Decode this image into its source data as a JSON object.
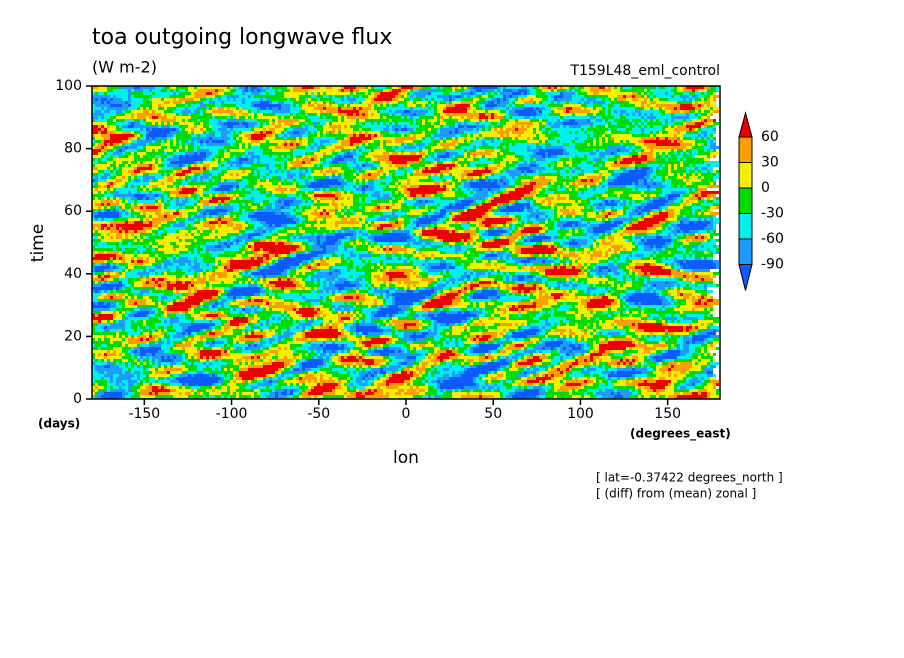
{
  "chart_data": {
    "type": "contour",
    "title": "toa outgoing longwave flux",
    "units": "(W m-2)",
    "experiment": "T159L48_eml_control",
    "xlabel": "lon",
    "ylabel": "time",
    "y_unit": "(days)",
    "x_unit": "(degrees_east)",
    "annotations": [
      "[ lat=-0.37422 degrees_north ]",
      "[ (diff) from (mean) zonal ]"
    ],
    "xlim": [
      -180,
      180
    ],
    "xticks": [
      -150,
      -100,
      -50,
      0,
      50,
      100,
      150
    ],
    "ylim": [
      0,
      100
    ],
    "yticks": [
      0,
      20,
      40,
      60,
      80,
      100
    ],
    "levels": [
      -90,
      -60,
      -30,
      0,
      30,
      60
    ],
    "colors": [
      "#0a5cff",
      "#1e9bff",
      "#00f0f0",
      "#00dc00",
      "#f5f000",
      "#f9a000",
      "#ee0000"
    ]
  }
}
